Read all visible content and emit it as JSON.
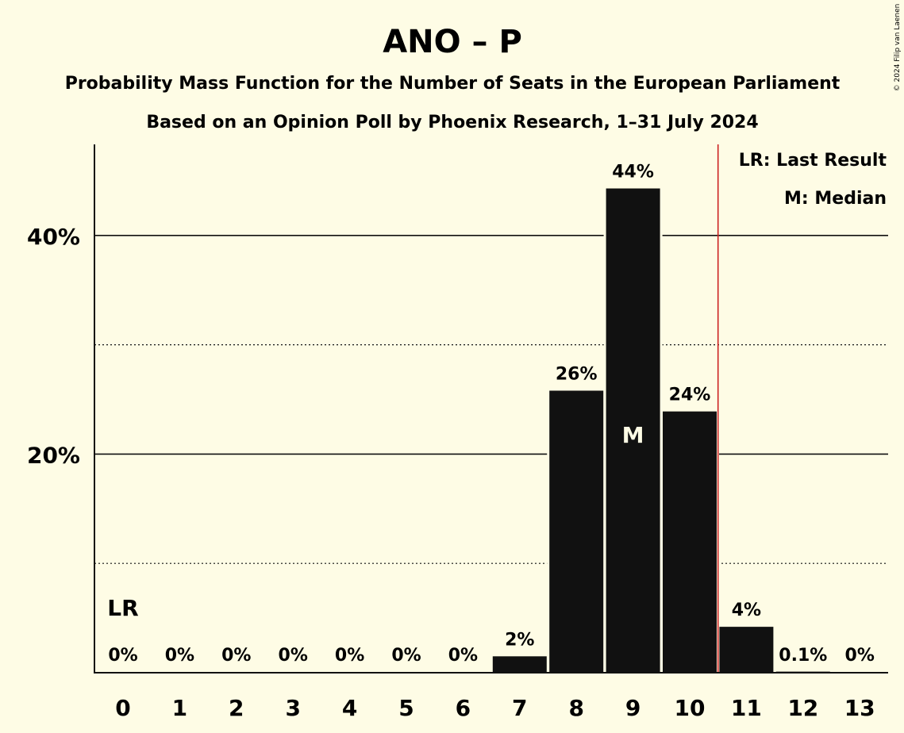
{
  "title": "ANO – P",
  "subtitle": "Probability Mass Function for the Number of Seats in the European Parliament",
  "subtitle2": "Based on an Opinion Poll by Phoenix Research, 1–31 July 2024",
  "copyright": "© 2024 Filip van Laenen",
  "legend": {
    "last_result": "LR: Last Result",
    "median": "M: Median"
  },
  "markers": {
    "last_result_label": "LR",
    "median_label": "M"
  },
  "colors": {
    "background": "#fefce5",
    "bar": "#111111",
    "last_result_line": "#cc2222"
  },
  "chart_data": {
    "type": "bar",
    "categories": [
      "0",
      "1",
      "2",
      "3",
      "4",
      "5",
      "6",
      "7",
      "8",
      "9",
      "10",
      "11",
      "12",
      "13"
    ],
    "values": [
      0,
      0,
      0,
      0,
      0,
      0,
      0,
      1.5,
      25.8,
      44.3,
      23.9,
      4.2,
      0.1,
      0
    ],
    "value_labels": [
      "0%",
      "0%",
      "0%",
      "0%",
      "0%",
      "0%",
      "0%",
      "2%",
      "26%",
      "44%",
      "24%",
      "4%",
      "0.1%",
      "0%"
    ],
    "y_ticks": [
      {
        "value": 20,
        "label": "20%"
      },
      {
        "value": 40,
        "label": "40%"
      }
    ],
    "y_dotted_gridlines": [
      10,
      30
    ],
    "ylim": [
      0,
      48
    ],
    "last_result": 0,
    "last_result_line_after": 10.5,
    "median": 9,
    "grid": true,
    "legend_position": "top-right"
  }
}
